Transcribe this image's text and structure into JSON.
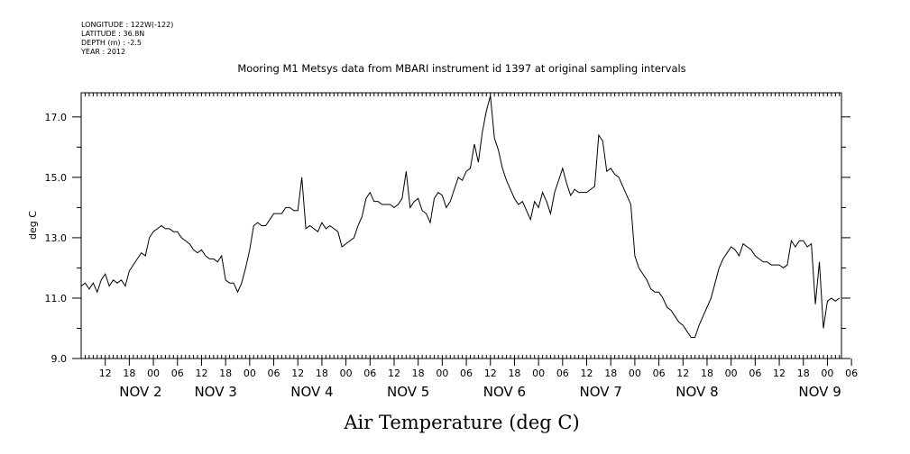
{
  "header": {
    "meta_lines": [
      "LONGITUDE : 122W(-122)",
      "LATITUDE : 36.8N",
      "DEPTH (m) : -2.5",
      "YEAR : 2012"
    ],
    "title": "Mooring M1 Metsys data from MBARI instrument id 1397 at original sampling intervals"
  },
  "chart_data": {
    "type": "line",
    "title": "Mooring M1 Metsys data from MBARI instrument id 1397 at original sampling intervals",
    "xlabel": "Air Temperature (deg C)",
    "ylabel": "deg C",
    "ylim": [
      9.0,
      17.8
    ],
    "xlim_hours": [
      0,
      189.5
    ],
    "x_origin": "NOV 2 06:00 2012",
    "y_ticks": [
      "9.0",
      "11.0",
      "13.0",
      "15.0",
      "17.0"
    ],
    "x_hour_ticks": [
      "12",
      "18",
      "00",
      "06",
      "12",
      "18",
      "00",
      "06",
      "12",
      "18",
      "00",
      "06",
      "12",
      "18",
      "00",
      "06",
      "12",
      "18",
      "00",
      "06",
      "12",
      "18",
      "00",
      "06",
      "12",
      "18",
      "00",
      "06",
      "12",
      "18",
      "00",
      "06"
    ],
    "x_day_labels": [
      "NOV  2",
      "NOV  3",
      "NOV  4",
      "NOV  5",
      "NOV  6",
      "NOV  7",
      "NOV  8",
      "NOV  9"
    ],
    "grid": false,
    "series": [
      {
        "values_time_hours": [
          0,
          1,
          2,
          3,
          4,
          5,
          6,
          7,
          8,
          9,
          10,
          11,
          12,
          13,
          14,
          15,
          16,
          17,
          18,
          19,
          20,
          21,
          22,
          23,
          24,
          25,
          26,
          27,
          28,
          29,
          30,
          31,
          32,
          33,
          34,
          35,
          36,
          37,
          38,
          39,
          40,
          41,
          42,
          43,
          44,
          45,
          46,
          47,
          48,
          49,
          50,
          51,
          52,
          53,
          54,
          55,
          56,
          57,
          58,
          59,
          60,
          61,
          62,
          63,
          64,
          65,
          66,
          67,
          68,
          69,
          70,
          71,
          72,
          73,
          74,
          75,
          76,
          77,
          78,
          79,
          80,
          81,
          82,
          83,
          84,
          85,
          86,
          87,
          88,
          89,
          90,
          91,
          92,
          93,
          94,
          95,
          96,
          97,
          98,
          99,
          100,
          101,
          102,
          103,
          104,
          105,
          106,
          107,
          108,
          109,
          110,
          111,
          112,
          113,
          114,
          115,
          116,
          117,
          118,
          119,
          120,
          121,
          122,
          123,
          124,
          125,
          126,
          127,
          128,
          129,
          130,
          131,
          132,
          133,
          134,
          135,
          136,
          137,
          138,
          139,
          140,
          141,
          142,
          143,
          144,
          145,
          146,
          147,
          148,
          149,
          150,
          151,
          152,
          153,
          154,
          155,
          156,
          157,
          158,
          159,
          160,
          161,
          162,
          163,
          164,
          165,
          166,
          167,
          168,
          169,
          170,
          171,
          172,
          173,
          174,
          175,
          176,
          177,
          178,
          179,
          180,
          181,
          182,
          183,
          184,
          185,
          186,
          187,
          188,
          189
        ],
        "values_temp": [
          11.4,
          11.5,
          11.3,
          11.5,
          11.2,
          11.6,
          11.8,
          11.4,
          11.6,
          11.5,
          11.6,
          11.4,
          11.9,
          12.1,
          12.3,
          12.5,
          12.4,
          13.0,
          13.2,
          13.3,
          13.4,
          13.3,
          13.3,
          13.2,
          13.2,
          13.0,
          12.9,
          12.8,
          12.6,
          12.5,
          12.6,
          12.4,
          12.3,
          12.3,
          12.2,
          12.4,
          11.6,
          11.5,
          11.5,
          11.2,
          11.5,
          12.0,
          12.6,
          13.4,
          13.5,
          13.4,
          13.4,
          13.6,
          13.8,
          13.8,
          13.8,
          14.0,
          14.0,
          13.9,
          13.9,
          15.0,
          13.3,
          13.4,
          13.3,
          13.2,
          13.5,
          13.3,
          13.4,
          13.3,
          13.2,
          12.7,
          12.8,
          12.9,
          13.0,
          13.4,
          13.7,
          14.3,
          14.5,
          14.2,
          14.2,
          14.1,
          14.1,
          14.1,
          14.0,
          14.1,
          14.3,
          15.2,
          14.0,
          14.2,
          14.3,
          13.9,
          13.8,
          13.5,
          14.3,
          14.5,
          14.4,
          14.0,
          14.2,
          14.6,
          15.0,
          14.9,
          15.2,
          15.3,
          16.1,
          15.5,
          16.5,
          17.2,
          17.7,
          16.3,
          15.9,
          15.3,
          14.9,
          14.6,
          14.3,
          14.1,
          14.2,
          13.9,
          13.6,
          14.2,
          14.0,
          14.5,
          14.2,
          13.8,
          14.5,
          14.9,
          15.3,
          14.8,
          14.4,
          14.6,
          14.5,
          14.5,
          14.5,
          14.6,
          14.7,
          16.4,
          16.2,
          15.2,
          15.3,
          15.1,
          15.0,
          14.7,
          14.4,
          14.1,
          12.4,
          12.0,
          11.8,
          11.6,
          11.3,
          11.2,
          11.2,
          11.0,
          10.7,
          10.6,
          10.4,
          10.2,
          10.1,
          9.9,
          9.7,
          9.7,
          10.1,
          10.4,
          10.7,
          11.0,
          11.5,
          12.0,
          12.3,
          12.5,
          12.7,
          12.6,
          12.4,
          12.8,
          12.7,
          12.6,
          12.4,
          12.3,
          12.2,
          12.2,
          12.1,
          12.1,
          12.1,
          12.0,
          12.1,
          12.9,
          12.7,
          12.9,
          12.9,
          12.7,
          12.8,
          10.8,
          12.2,
          10.0,
          10.9,
          11.0,
          10.9,
          11.0,
          10.7,
          10.7,
          10.8,
          11.0
        ]
      }
    ]
  }
}
